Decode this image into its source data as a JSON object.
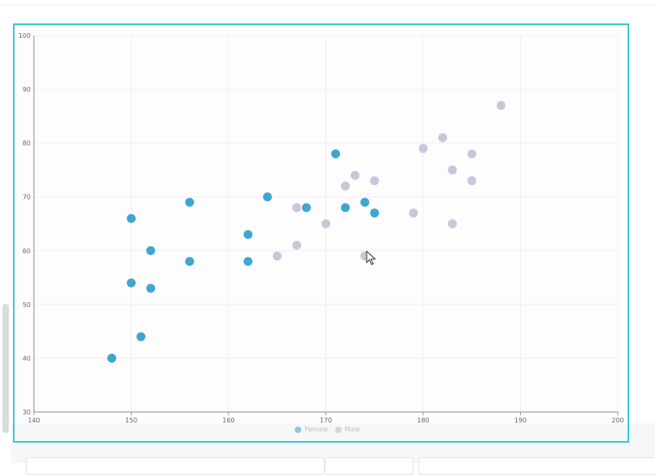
{
  "chart_data": {
    "type": "scatter",
    "xlim": [
      140,
      200
    ],
    "ylim": [
      30,
      100
    ],
    "x_ticks": [
      "140",
      "150",
      "160",
      "170",
      "180",
      "190",
      "200"
    ],
    "y_ticks": [
      "30",
      "40",
      "50",
      "60",
      "70",
      "80",
      "90",
      "100"
    ],
    "grid": true,
    "legend": "bottom",
    "series": [
      {
        "name": "Female",
        "color": "#3fa6d0",
        "points": [
          [
            148,
            40
          ],
          [
            150,
            66
          ],
          [
            150,
            54
          ],
          [
            151,
            44
          ],
          [
            152,
            60
          ],
          [
            152,
            53
          ],
          [
            156,
            69
          ],
          [
            156,
            58
          ],
          [
            162,
            63
          ],
          [
            162,
            58
          ],
          [
            164,
            70
          ],
          [
            168,
            68
          ],
          [
            171,
            78
          ],
          [
            172,
            68
          ],
          [
            174,
            69
          ],
          [
            175,
            67
          ]
        ]
      },
      {
        "name": "Male",
        "color": "#c8c6d8",
        "points": [
          [
            165,
            59
          ],
          [
            167,
            68
          ],
          [
            167,
            61
          ],
          [
            170,
            65
          ],
          [
            172,
            72
          ],
          [
            173,
            74
          ],
          [
            174,
            59
          ],
          [
            175,
            73
          ],
          [
            179,
            67
          ],
          [
            180,
            79
          ],
          [
            182,
            81
          ],
          [
            183,
            75
          ],
          [
            183,
            65
          ],
          [
            185,
            78
          ],
          [
            185,
            73
          ],
          [
            188,
            87
          ]
        ]
      }
    ]
  },
  "legend_items": [
    {
      "label": "Female",
      "color": "#8fc6e0"
    },
    {
      "label": "Male",
      "color": "#d4d4dc"
    }
  ]
}
